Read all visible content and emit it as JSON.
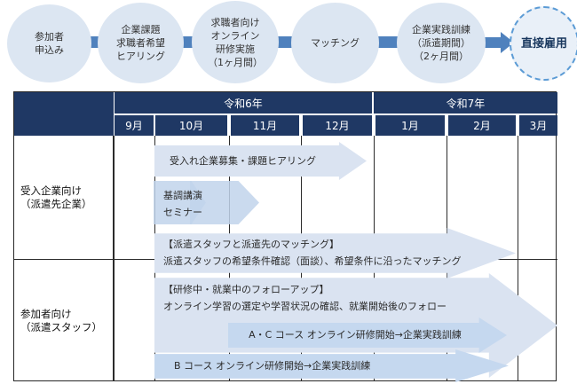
{
  "flow": {
    "steps": [
      "参加者\n申込み",
      "企業課題\n求職者希望\nヒアリング",
      "求職者向け\nオンライン\n研修実施\n（1ヶ月間）",
      "マッチング",
      "企業実践訓練\n（派遣期間）\n（2ヶ月間）"
    ],
    "goal": "直接雇用"
  },
  "schedule": {
    "years": [
      "令和6年",
      "令和7年"
    ],
    "months": [
      "9月",
      "10月",
      "11月",
      "12月",
      "1月",
      "2月",
      "3月"
    ],
    "row_labels": [
      "受入企業向け\n（派遣先企業）",
      "参加者向け\n（派遣スタッフ）"
    ],
    "bars": {
      "recruit": "受入れ企業募集・課題ヒアリング",
      "keynote": "基調講演",
      "seminar": "セミナー",
      "matching_title": "【派遣スタッフと派遣先のマッチング】",
      "matching_desc": "派遣スタッフの希望条件確認（面談）、希望条件に沿ったマッチング",
      "followup_title": "【研修中・就業中のフォローアップ】",
      "followup_desc": "オンライン学習の選定や学習状況の確認、就業開始後のフォロー",
      "course_ac": "A・C コース オンライン研修開始→企業実践訓練",
      "course_b": "B コース オンライン研修開始→企業実践訓練"
    }
  },
  "colors": {
    "header_navy": "#1f3864",
    "bar_light_blue": "#dae3f1",
    "circle_blue": "#dce6f2",
    "connector_blue": "#4f81bd",
    "course_blue": "#c5d8ef",
    "dashed_border_blue": "#5b9bd5"
  }
}
